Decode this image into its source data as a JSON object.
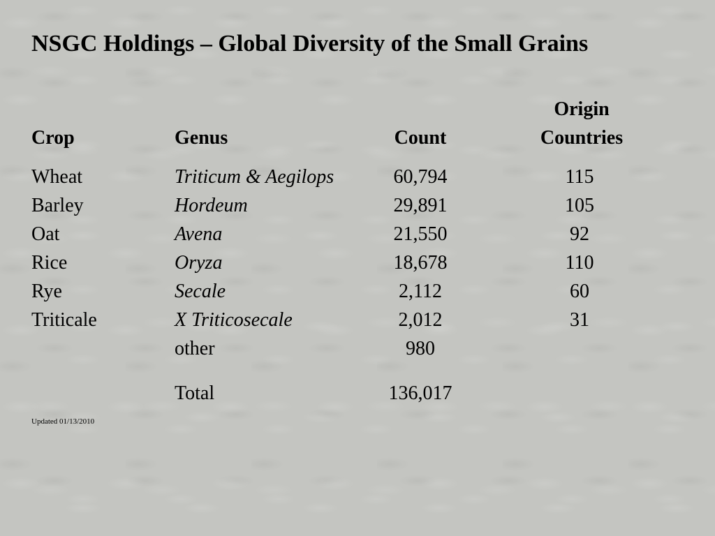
{
  "title": "NSGC Holdings – Global Diversity of the Small Grains",
  "headers": {
    "crop": "Crop",
    "genus": "Genus",
    "count": "Count",
    "origin_line1": "Origin",
    "origin_line2": "Countries"
  },
  "rows": [
    {
      "crop": "Wheat",
      "genus": "Triticum & Aegilops",
      "count": "60,794",
      "countries": "115"
    },
    {
      "crop": "Barley",
      "genus": "Hordeum",
      "count": "29,891",
      "countries": "105"
    },
    {
      "crop": "Oat",
      "genus": "Avena",
      "count": "21,550",
      "countries": "92"
    },
    {
      "crop": "Rice",
      "genus": "Oryza",
      "count": "18,678",
      "countries": "110"
    },
    {
      "crop": "Rye",
      "genus": "Secale",
      "count": "2,112",
      "countries": "60"
    },
    {
      "crop": "Triticale",
      "genus": "X Triticosecale",
      "count": "2,012",
      "countries": "31"
    },
    {
      "crop": "",
      "genus": "other",
      "count": "980",
      "countries": ""
    }
  ],
  "total": {
    "label": "Total",
    "count": "136,017"
  },
  "updated": "Updated 01/13/2010",
  "colors": {
    "background": "#c4c5c1",
    "text": "#000000"
  }
}
